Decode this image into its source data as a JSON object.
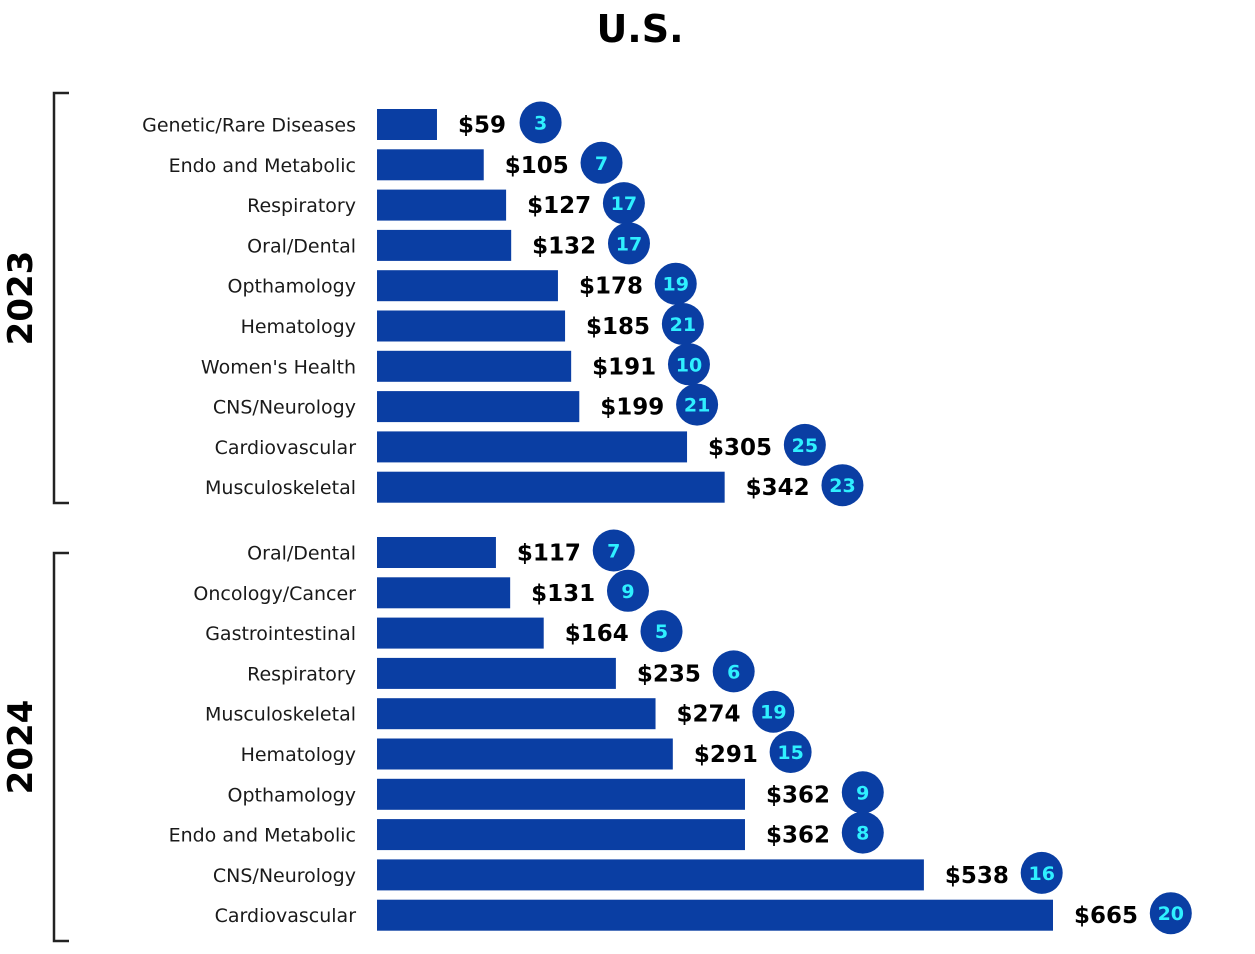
{
  "chart_data": {
    "type": "bar",
    "orientation": "horizontal",
    "title": "U.S.",
    "colors": {
      "bar": "#0a3ea3",
      "badge": "#0a3ea3",
      "badge_text": "#2ff0ff",
      "bracket": "#222222"
    },
    "groups": [
      {
        "name": "2023",
        "categories": [
          "Genetic/Rare Diseases",
          "Endo and Metabolic",
          "Respiratory",
          "Oral/Dental",
          "Opthamology",
          "Hematology",
          "Women's Health",
          "CNS/Neurology",
          "Cardiovascular",
          "Musculoskeletal"
        ],
        "values": [
          59,
          105,
          127,
          132,
          178,
          185,
          191,
          199,
          305,
          342
        ],
        "value_labels": [
          "$59",
          "$105",
          "$127",
          "$132",
          "$178",
          "$185",
          "$191",
          "$199",
          "$305",
          "$342"
        ],
        "counts": [
          "3",
          "7",
          "17",
          "17",
          "19",
          "21",
          "10",
          "21",
          "25",
          "23"
        ]
      },
      {
        "name": "2024",
        "categories": [
          "Oral/Dental",
          "Oncology/Cancer",
          "Gastrointestinal",
          "Respiratory",
          "Musculoskeletal",
          "Hematology",
          "Opthamology",
          "Endo and Metabolic",
          "CNS/Neurology",
          "Cardiovascular"
        ],
        "values": [
          117,
          131,
          164,
          235,
          274,
          291,
          362,
          362,
          538,
          665
        ],
        "value_labels": [
          "$117",
          "$131",
          "$164",
          "$235",
          "$274",
          "$291",
          "$362",
          "$362",
          "$538",
          "$665"
        ],
        "counts": [
          "7",
          "9",
          "5",
          "6",
          "19",
          "15",
          "9",
          "8",
          "16",
          "20"
        ]
      }
    ]
  }
}
